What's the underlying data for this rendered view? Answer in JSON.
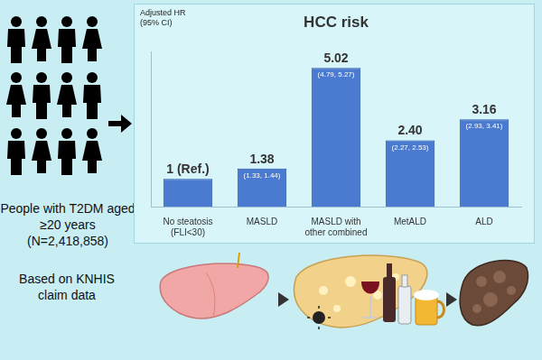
{
  "panel": {
    "cohort": "People with T2DM aged ≥20 years",
    "n": "(N=2,418,858)",
    "source": "Based on KNHIS claim data"
  },
  "chart_data": {
    "type": "bar",
    "title": "HCC risk",
    "ylabel": [
      "Adjusted HR",
      "(95% CI)"
    ],
    "categories": [
      "No steatosis (FLI<30)",
      "MASLD",
      "MASLD with other combined",
      "MetALD",
      "ALD"
    ],
    "values": [
      1,
      1.38,
      5.02,
      2.4,
      3.16
    ],
    "value_labels": [
      "1 (Ref.)",
      "1.38",
      "5.02",
      "2.40",
      "3.16"
    ],
    "ci_labels": [
      null,
      "(1.33, 1.44)",
      "(4.79, 5.27)",
      "(2.27, 2.53)",
      "(2.93, 3.41)"
    ],
    "color": "#4a7bd0",
    "ylim": [
      0,
      5.6
    ],
    "data_labels": true,
    "tick_labels": "x",
    "grid": false
  }
}
